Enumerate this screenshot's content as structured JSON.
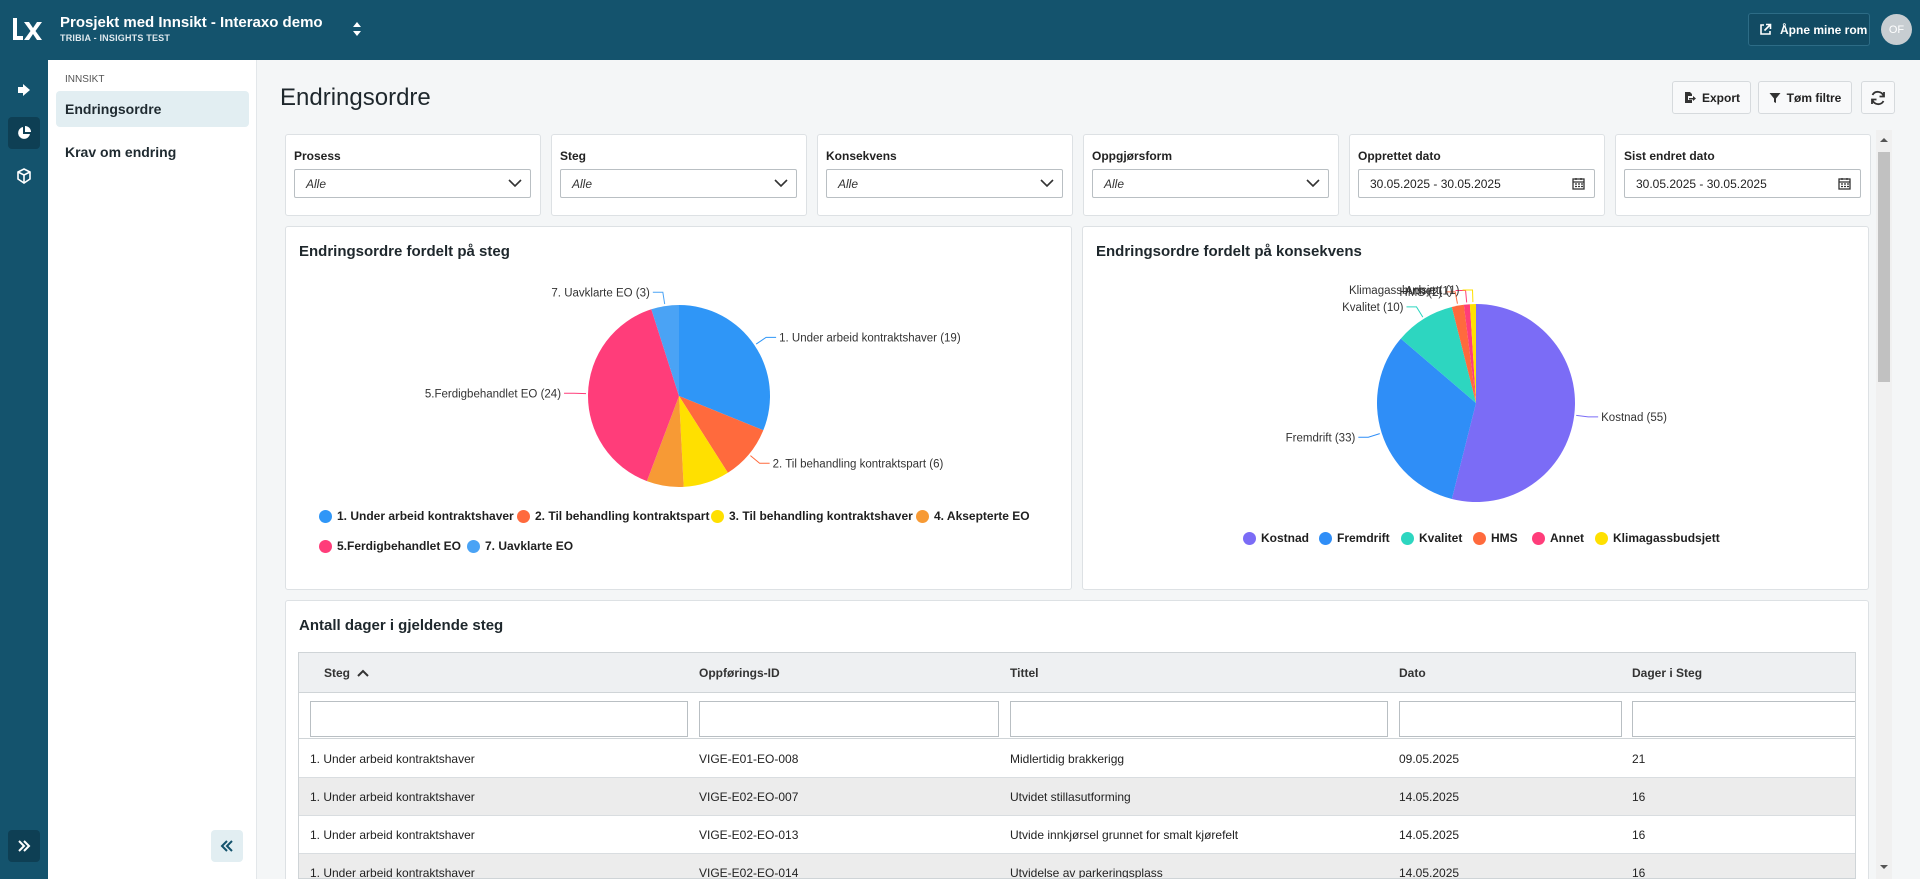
{
  "header": {
    "project_title": "Prosjekt med Innsikt - Interaxo demo",
    "project_subtitle": "TRIBIA - INSIGHTS TEST",
    "open_rooms_label": "Åpne mine rom",
    "avatar_initials": "OF"
  },
  "sidenav": {
    "section": "INNSIKT",
    "items": [
      {
        "label": "Endringsordre",
        "active": true
      },
      {
        "label": "Krav om endring",
        "active": false
      }
    ]
  },
  "page": {
    "title": "Endringsordre",
    "export_label": "Export",
    "clear_filters_label": "Tøm filtre"
  },
  "filters": [
    {
      "label": "Prosess",
      "value": "Alle",
      "type": "select"
    },
    {
      "label": "Steg",
      "value": "Alle",
      "type": "select"
    },
    {
      "label": "Konsekvens",
      "value": "Alle",
      "type": "select"
    },
    {
      "label": "Oppgjørsform",
      "value": "Alle",
      "type": "select"
    },
    {
      "label": "Opprettet dato",
      "value": "30.05.2025 - 30.05.2025",
      "type": "date"
    },
    {
      "label": "Sist endret dato",
      "value": "30.05.2025 - 30.05.2025",
      "type": "date"
    }
  ],
  "chart_data": [
    {
      "type": "pie",
      "title": "Endringsordre fordelt på steg",
      "legend_position": "bottom",
      "slices": [
        {
          "name": "1. Under arbeid kontraktshaver",
          "value": 19,
          "label": "1. Under arbeid kontraktshaver (19)",
          "color": "#2f96f7"
        },
        {
          "name": "2. Til behandling kontraktspart",
          "value": 6,
          "label": "2. Til behandling kontraktspart (6)",
          "color": "#ff6a3d"
        },
        {
          "name": "3. Til behandling kontraktshaver",
          "value": 5,
          "label": "",
          "color": "#ffe000"
        },
        {
          "name": "4. Aksepterte EO",
          "value": 4,
          "label": "",
          "color": "#f79a35"
        },
        {
          "name": "5.Ferdigbehandlet EO",
          "value": 24,
          "label": "5.Ferdigbehandlet EO (24)",
          "color": "#ff3d7a"
        },
        {
          "name": "7. Uavklarte EO",
          "value": 3,
          "label": "7. Uavklarte EO (3)",
          "color": "#4aa3f5"
        }
      ]
    },
    {
      "type": "pie",
      "title": "Endringsordre fordelt på konsekvens",
      "legend_position": "bottom",
      "slices": [
        {
          "name": "Kostnad",
          "value": 55,
          "label": "Kostnad (55)",
          "color": "#7b6cf6"
        },
        {
          "name": "Fremdrift",
          "value": 33,
          "label": "Fremdrift (33)",
          "color": "#2f8ef7"
        },
        {
          "name": "Kvalitet",
          "value": 10,
          "label": "Kvalitet (10)",
          "color": "#2dd6c0"
        },
        {
          "name": "HMS",
          "value": 2,
          "label": "HMS (2)",
          "color": "#ff6a3d"
        },
        {
          "name": "Annet",
          "value": 1,
          "label": "Annet (1)",
          "color": "#ff3d7a"
        },
        {
          "name": "Klimagassbudsjett",
          "value": 1,
          "label": "Klimagassbudsjett (1)",
          "color": "#ffe000"
        }
      ]
    }
  ],
  "table": {
    "title": "Antall dager i gjeldende steg",
    "columns": [
      "Steg",
      "Oppførings-ID",
      "Tittel",
      "Dato",
      "Dager i Steg"
    ],
    "rows": [
      [
        "1. Under arbeid kontraktshaver",
        "VIGE-E01-EO-008",
        "Midlertidig brakkerigg",
        "09.05.2025",
        "21"
      ],
      [
        "1. Under arbeid kontraktshaver",
        "VIGE-E02-EO-007",
        "Utvidet stillasutforming",
        "14.05.2025",
        "16"
      ],
      [
        "1. Under arbeid kontraktshaver",
        "VIGE-E02-EO-013",
        "Utvide innkjørsel grunnet for smalt kjørefelt",
        "14.05.2025",
        "16"
      ],
      [
        "1. Under arbeid kontraktshaver",
        "VIGE-E02-EO-014",
        "Utvidelse av parkeringsplass",
        "14.05.2025",
        "16"
      ]
    ]
  }
}
